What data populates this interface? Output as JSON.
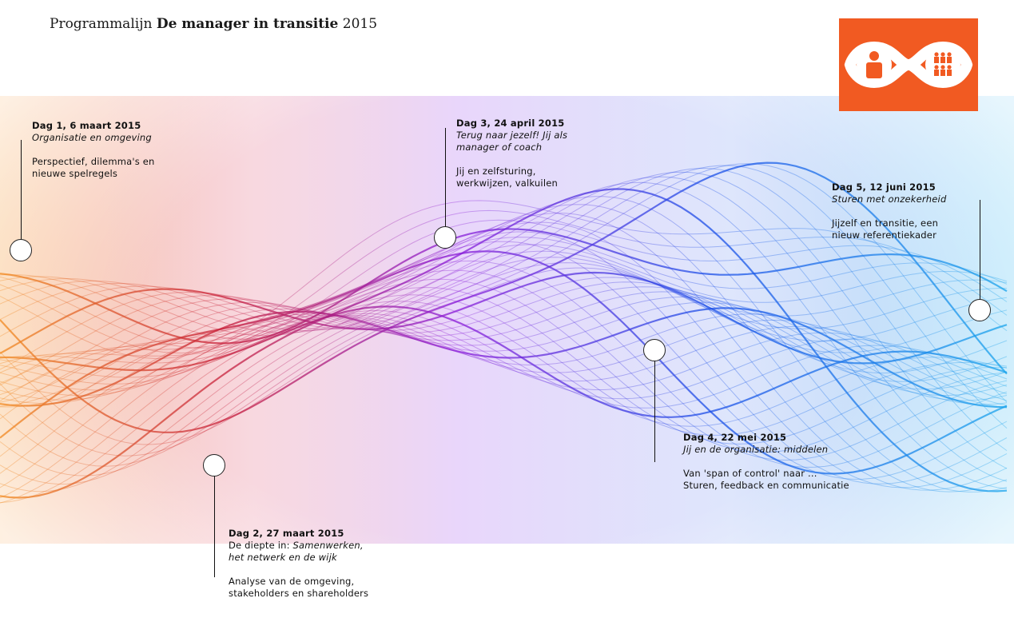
{
  "header": {
    "title_prefix": "Programmalijn",
    "title_bold": "De manager in transitie",
    "title_year": "2015"
  },
  "logo": {
    "icon": "infinity-person-group-logo",
    "color": "#f15a22"
  },
  "colors": {
    "start": "#f18a20",
    "red": "#c8203a",
    "purple": "#8a1cd8",
    "blue": "#1a4ee8",
    "cyan": "#1aa6ec"
  },
  "events": [
    {
      "date": "Dag 1, 6 maart 2015",
      "subtitle": "Organisatie en omgeving",
      "text1": "Perspectief, dilemma's en",
      "text2": "nieuwe spelregels"
    },
    {
      "date": "Dag 2, 27 maart 2015",
      "intro": "De diepte in: ",
      "subtitle_a": "Samenwerken,",
      "subtitle_b": "het netwerk en de wijk",
      "text1": "Analyse van de omgeving,",
      "text2": "stakeholders en shareholders"
    },
    {
      "date": "Dag 3, 24 april 2015",
      "subtitle_a": "Terug naar jezelf! Jij als",
      "subtitle_b": "manager of coach",
      "text1": "Jij en zelfsturing,",
      "text2": "werkwijzen, valkuilen"
    },
    {
      "date": "Dag 4, 22 mei 2015",
      "subtitle": "Jij en de organisatie: middelen",
      "text1": "Van 'span of control' naar ...",
      "text2": "Sturen, feedback en communicatie"
    },
    {
      "date": "Dag 5, 12 juni 2015",
      "subtitle": "Sturen met onzekerheid",
      "text1": "Jijzelf en transitie, een",
      "text2": "nieuw referentiekader"
    }
  ]
}
